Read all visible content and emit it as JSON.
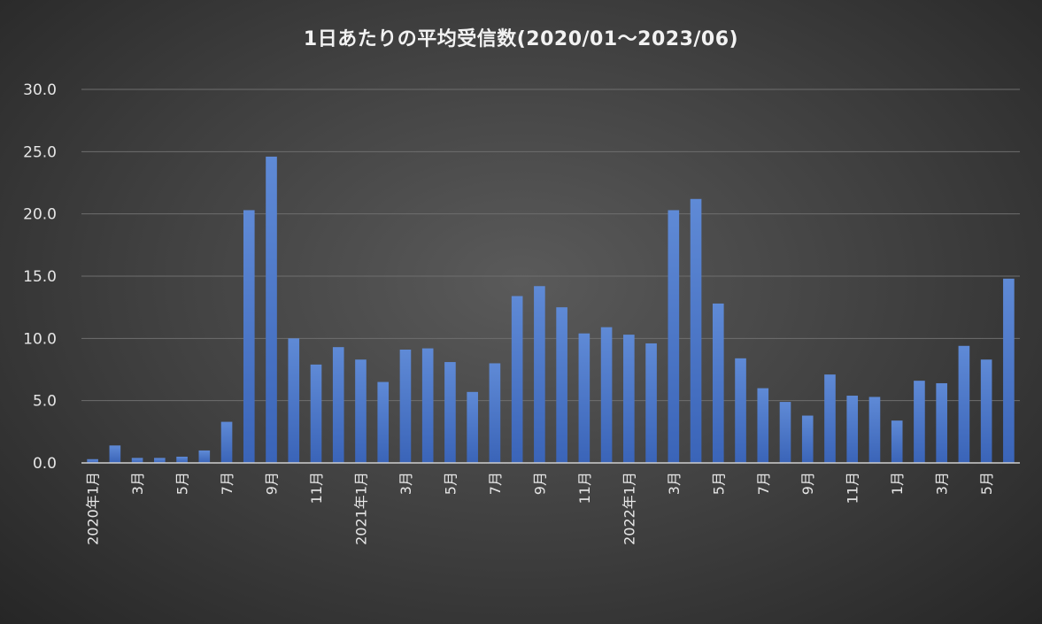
{
  "chart_data": {
    "type": "bar",
    "title": "1日あたりの平均受信数(2020/01～2023/06)",
    "xlabel": "",
    "ylabel": "",
    "ylim": [
      0,
      30
    ],
    "y_ticks": [
      "0.0",
      "5.0",
      "10.0",
      "15.0",
      "20.0",
      "25.0",
      "30.0"
    ],
    "grid": true,
    "bar_color": "#4472c4",
    "categories": [
      "2020年1月",
      "",
      "3月",
      "",
      "5月",
      "",
      "7月",
      "",
      "9月",
      "",
      "11月",
      "",
      "2021年1月",
      "",
      "3月",
      "",
      "5月",
      "",
      "7月",
      "",
      "9月",
      "",
      "11月",
      "",
      "2022年1月",
      "",
      "3月",
      "",
      "5月",
      "",
      "7月",
      "",
      "9月",
      "",
      "11月",
      "",
      "1月",
      "",
      "3月",
      "",
      "5月",
      ""
    ],
    "values": [
      0.3,
      1.4,
      0.4,
      0.4,
      0.5,
      1.0,
      3.3,
      20.3,
      24.6,
      10.0,
      7.9,
      9.3,
      8.3,
      6.5,
      9.1,
      9.2,
      8.1,
      5.7,
      8.0,
      13.4,
      14.2,
      12.5,
      10.4,
      10.9,
      10.3,
      9.6,
      20.3,
      21.2,
      12.8,
      8.4,
      6.0,
      4.9,
      3.8,
      7.1,
      5.4,
      5.3,
      3.4,
      6.6,
      6.4,
      9.4,
      8.3,
      14.8
    ]
  }
}
